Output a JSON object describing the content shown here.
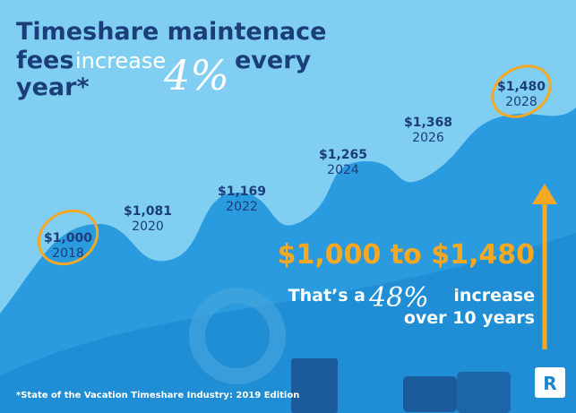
{
  "title": {
    "line1": "Timeshare maintenace",
    "fees": "fees",
    "increase": "increase",
    "pct": "4%",
    "every": "every",
    "year": "year*"
  },
  "points": [
    {
      "value": "$1,000",
      "year": "2018"
    },
    {
      "value": "$1,081",
      "year": "2020"
    },
    {
      "value": "$1,169",
      "year": "2022"
    },
    {
      "value": "$1,265",
      "year": "2024"
    },
    {
      "value": "$1,368",
      "year": "2026"
    },
    {
      "value": "$1,480",
      "year": "2028"
    }
  ],
  "headline": "$1,000 to $1,480",
  "subline": {
    "a": "That’s a",
    "pct": "48%",
    "b": "increase",
    "c": "over 10 years"
  },
  "footnote": "*State of the Vacation Timeshare Industry: 2019 Edition",
  "logo": "R"
}
